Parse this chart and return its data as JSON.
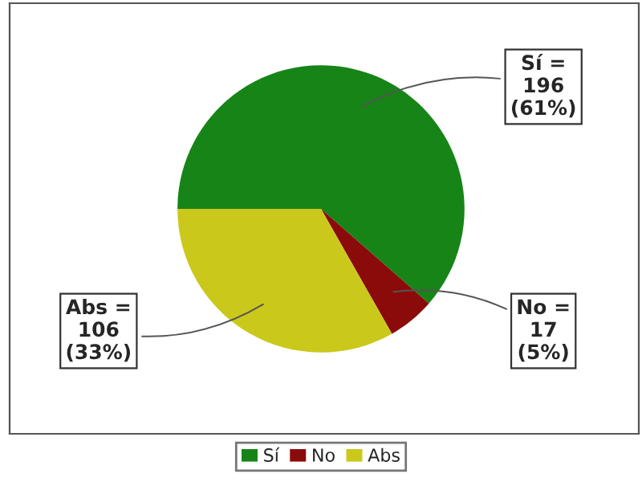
{
  "chart_data": {
    "type": "pie",
    "categories": [
      "Sí",
      "No",
      "Abs"
    ],
    "values": [
      196,
      17,
      106
    ],
    "colors": [
      "#178417",
      "#8b0b0b",
      "#cbc81c"
    ],
    "value_labels": [
      "Sí =\n196\n(61%)",
      "No =\n17\n(5%)",
      "Abs =\n106\n(33%)"
    ],
    "legend": "bottom"
  }
}
